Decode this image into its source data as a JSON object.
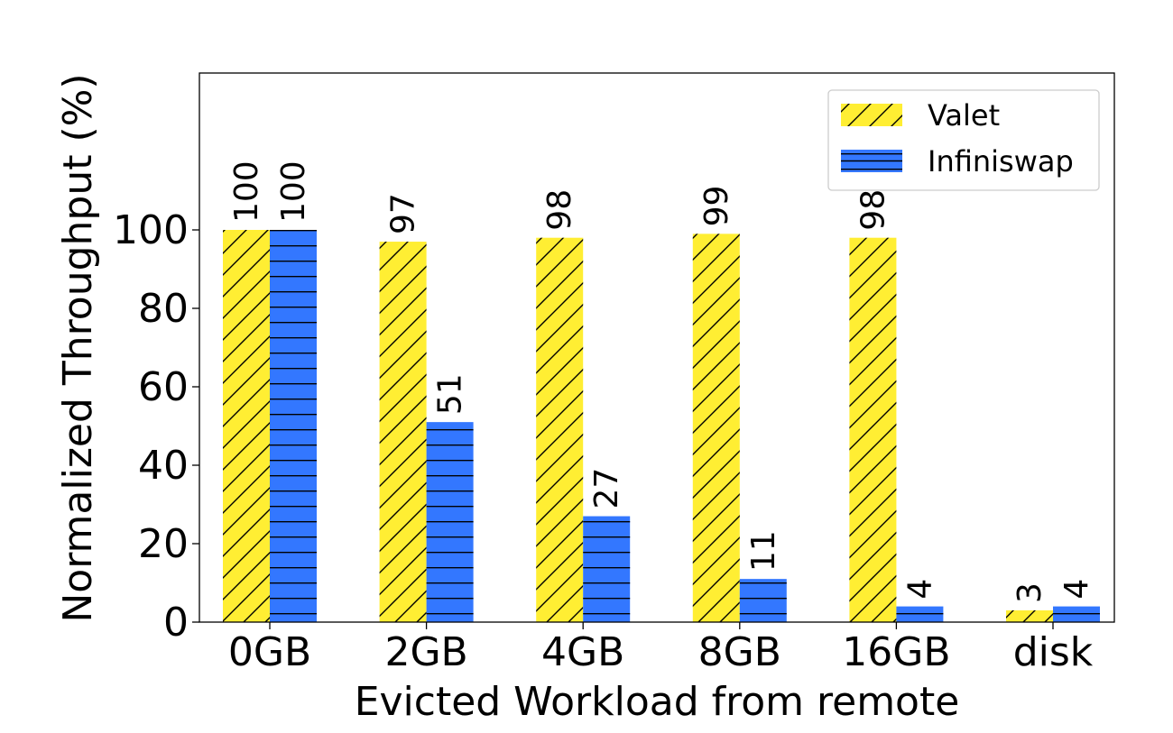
{
  "chart_data": {
    "type": "bar",
    "categories": [
      "0GB",
      "2GB",
      "4GB",
      "8GB",
      "16GB",
      "disk"
    ],
    "series": [
      {
        "name": "Valet",
        "values": [
          100,
          97,
          98,
          99,
          98,
          3
        ],
        "color": "#ffee33",
        "hatch": "diagonal"
      },
      {
        "name": "Infiniswap",
        "values": [
          100,
          51,
          27,
          11,
          4,
          4
        ],
        "color": "#3377ff",
        "hatch": "horizontal"
      }
    ],
    "xlabel": "Evicted Workload from remote",
    "ylabel": "Normalized Throughput (%)",
    "ylim": [
      0,
      140
    ],
    "yticks": [
      0,
      20,
      40,
      60,
      80,
      100
    ],
    "grid": false,
    "legend_position": "top-right",
    "data_labels": true
  }
}
